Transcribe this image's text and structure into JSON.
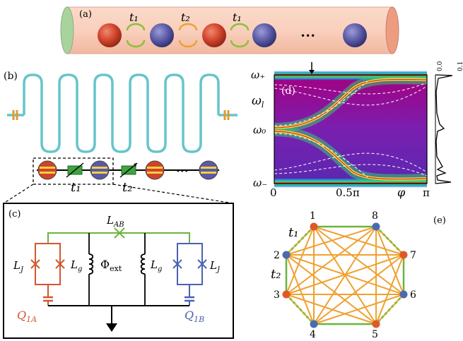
{
  "panels": {
    "a": {
      "label": "(a)",
      "hoppings": [
        "t₁",
        "t₂",
        "t₁"
      ],
      "ellipsis": "•••",
      "colors": {
        "red": "#d0432a",
        "blue": "#5a5aa6",
        "tube": "#f6c8b4",
        "cap_left": "#a8d39a",
        "cap_right": "#ee9c80",
        "arrow_green": "#8cbf3a",
        "arrow_orange": "#f0a030"
      }
    },
    "b": {
      "label": "(b)",
      "hoppings": [
        "t₁",
        "t₂"
      ],
      "ellipsis": "•••",
      "colors": {
        "meander": "#66c4cc",
        "coupler": "#e49a2c",
        "junction": "#2f8c2f"
      }
    },
    "c": {
      "label": "(c)",
      "labels": {
        "lab": "L",
        "lab_sub": "AB",
        "lj_left": "L",
        "lj_left_sub": "J",
        "lg_left": "L",
        "lg_left_sub": "g",
        "phi": "Φ",
        "phi_sub": "ext",
        "lg_right": "L",
        "lg_right_sub": "g",
        "lj_right": "L",
        "lj_right_sub": "J",
        "q_left": "Q",
        "q_left_sub": "1A",
        "q_right": "Q",
        "q_right_sub": "1B"
      },
      "colors": {
        "red": "#d0582e",
        "blue": "#4a62b0",
        "green": "#6cb33f"
      }
    },
    "d": {
      "label": "(d)",
      "y_ticks": [
        "ω₊",
        "ω₀",
        "ω₋"
      ],
      "y_axis_label": "ω",
      "y_axis_label_sub": "l",
      "x_ticks": [
        "0",
        "0.5π",
        "π"
      ],
      "x_axis_label": "φ",
      "side_ticks": [
        "0.0",
        "0.1"
      ]
    },
    "e": {
      "label": "(e)",
      "nodes": [
        "1",
        "8",
        "7",
        "6",
        "5",
        "4",
        "3",
        "2"
      ],
      "hoppings": [
        "t₁",
        "t₂"
      ],
      "colors": {
        "edge": "#f0a030",
        "dashed": "#8cbf3a",
        "node_red": "#e0582a",
        "node_blue": "#4a6ab0"
      }
    }
  }
}
